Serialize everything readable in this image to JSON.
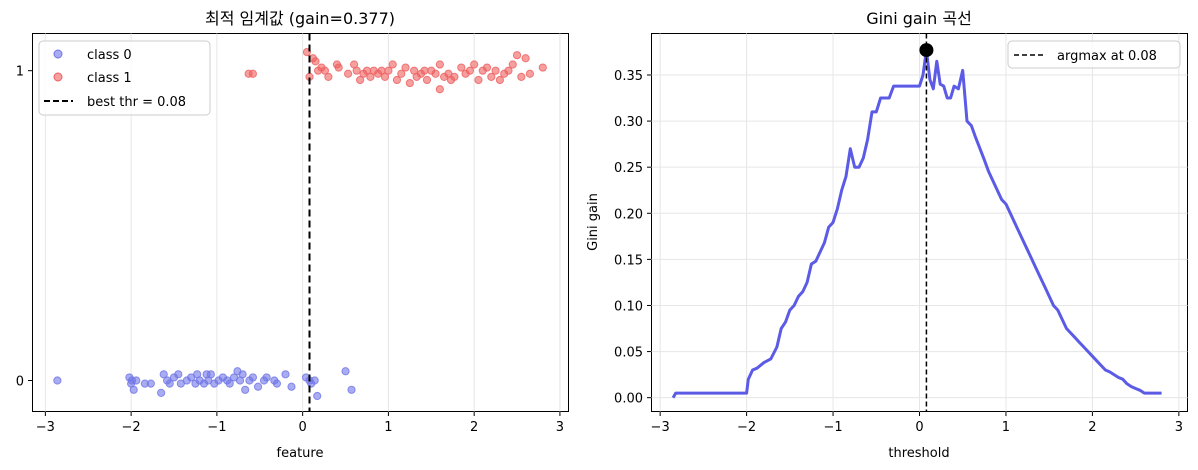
{
  "chart_data": [
    {
      "type": "scatter",
      "title": "최적 임계값 (gain=0.377)",
      "xlabel": "feature",
      "ylabel": "",
      "xlim": [
        -3.15,
        3.1
      ],
      "ylim": [
        -0.1,
        1.12
      ],
      "xticks": [
        "−3",
        "−2",
        "−1",
        "0",
        "1",
        "2",
        "3"
      ],
      "yticks": [
        "0",
        "1"
      ],
      "grid": true,
      "legend_position": "top-left",
      "threshold": 0.08,
      "threshold_label": "best thr = 0.08",
      "series": [
        {
          "name": "class 0",
          "color": "#6f75e6",
          "points": [
            [
              -2.86,
              0.0
            ],
            [
              -2.02,
              0.01
            ],
            [
              -2.0,
              -0.01
            ],
            [
              -1.99,
              0.0
            ],
            [
              -1.97,
              -0.03
            ],
            [
              -1.94,
              0.0
            ],
            [
              -1.84,
              -0.01
            ],
            [
              -1.77,
              -0.01
            ],
            [
              -1.65,
              -0.04
            ],
            [
              -1.62,
              0.02
            ],
            [
              -1.58,
              0.0
            ],
            [
              -1.55,
              -0.01
            ],
            [
              -1.5,
              0.01
            ],
            [
              -1.45,
              0.02
            ],
            [
              -1.42,
              -0.01
            ],
            [
              -1.35,
              0.0
            ],
            [
              -1.3,
              0.01
            ],
            [
              -1.25,
              -0.01
            ],
            [
              -1.23,
              0.02
            ],
            [
              -1.2,
              0.0
            ],
            [
              -1.15,
              -0.01
            ],
            [
              -1.12,
              0.02
            ],
            [
              -1.1,
              0.0
            ],
            [
              -1.07,
              0.02
            ],
            [
              -1.03,
              -0.01
            ],
            [
              -0.98,
              0.0
            ],
            [
              -0.93,
              0.01
            ],
            [
              -0.88,
              0.0
            ],
            [
              -0.85,
              -0.01
            ],
            [
              -0.8,
              0.01
            ],
            [
              -0.76,
              0.03
            ],
            [
              -0.73,
              0.0
            ],
            [
              -0.7,
              0.02
            ],
            [
              -0.67,
              -0.03
            ],
            [
              -0.62,
              0.0
            ],
            [
              -0.58,
              0.01
            ],
            [
              -0.52,
              -0.02
            ],
            [
              -0.45,
              0.0
            ],
            [
              -0.42,
              0.01
            ],
            [
              -0.33,
              0.0
            ],
            [
              -0.3,
              -0.01
            ],
            [
              -0.2,
              0.02
            ],
            [
              -0.13,
              -0.02
            ],
            [
              0.04,
              0.01
            ],
            [
              0.08,
              0.0
            ],
            [
              0.1,
              -0.01
            ],
            [
              0.14,
              0.0
            ],
            [
              0.17,
              -0.05
            ],
            [
              0.5,
              0.03
            ],
            [
              0.57,
              -0.03
            ]
          ]
        },
        {
          "name": "class 1",
          "color": "#ee5f5f",
          "points": [
            [
              -0.63,
              0.99
            ],
            [
              -0.58,
              0.99
            ],
            [
              0.05,
              1.06
            ],
            [
              0.08,
              0.98
            ],
            [
              0.12,
              1.04
            ],
            [
              0.15,
              1.03
            ],
            [
              0.18,
              1.0
            ],
            [
              0.22,
              1.01
            ],
            [
              0.26,
              1.0
            ],
            [
              0.3,
              0.98
            ],
            [
              0.4,
              1.02
            ],
            [
              0.42,
              1.01
            ],
            [
              0.53,
              0.99
            ],
            [
              0.6,
              1.02
            ],
            [
              0.63,
              1.0
            ],
            [
              0.67,
              0.97
            ],
            [
              0.71,
              0.99
            ],
            [
              0.75,
              1.0
            ],
            [
              0.79,
              0.98
            ],
            [
              0.83,
              1.0
            ],
            [
              0.88,
              0.99
            ],
            [
              0.92,
              1.0
            ],
            [
              0.96,
              0.98
            ],
            [
              1.0,
              1.0
            ],
            [
              1.05,
              1.02
            ],
            [
              1.1,
              0.97
            ],
            [
              1.15,
              0.99
            ],
            [
              1.2,
              1.01
            ],
            [
              1.25,
              0.96
            ],
            [
              1.3,
              1.0
            ],
            [
              1.33,
              0.98
            ],
            [
              1.38,
              0.99
            ],
            [
              1.42,
              1.0
            ],
            [
              1.45,
              0.97
            ],
            [
              1.5,
              1.0
            ],
            [
              1.55,
              0.99
            ],
            [
              1.6,
              1.02
            ],
            [
              1.65,
              0.98
            ],
            [
              1.7,
              0.99
            ],
            [
              1.73,
              0.97
            ],
            [
              1.77,
              0.98
            ],
            [
              1.85,
              1.01
            ],
            [
              1.9,
              0.99
            ],
            [
              1.95,
              1.0
            ],
            [
              2.0,
              1.02
            ],
            [
              2.05,
              0.97
            ],
            [
              2.1,
              1.0
            ],
            [
              2.15,
              1.01
            ],
            [
              2.2,
              0.98
            ],
            [
              2.25,
              1.0
            ],
            [
              2.3,
              0.97
            ],
            [
              2.35,
              0.99
            ],
            [
              2.4,
              1.0
            ],
            [
              2.45,
              1.02
            ],
            [
              2.5,
              1.05
            ],
            [
              2.55,
              0.98
            ],
            [
              2.6,
              1.04
            ],
            [
              2.65,
              0.99
            ],
            [
              2.8,
              1.01
            ],
            [
              1.6,
              0.94
            ]
          ]
        }
      ]
    },
    {
      "type": "line",
      "title": "Gini gain 곡선",
      "xlabel": "threshold",
      "ylabel": "Gini gain",
      "xlim": [
        -3.1,
        3.1
      ],
      "ylim": [
        -0.015,
        0.395
      ],
      "xticks": [
        "−3",
        "−2",
        "−1",
        "0",
        "1",
        "2",
        "3"
      ],
      "yticks": [
        "0.00",
        "0.05",
        "0.10",
        "0.15",
        "0.20",
        "0.25",
        "0.30",
        "0.35"
      ],
      "grid": true,
      "legend_position": "top-right",
      "argmax_x": 0.08,
      "argmax_y": 0.377,
      "argmax_label": "argmax at 0.08",
      "series": [
        {
          "name": "",
          "color": "#5b5be6",
          "x": [
            -2.85,
            -2.82,
            -2.0,
            -1.98,
            -1.93,
            -1.88,
            -1.8,
            -1.72,
            -1.65,
            -1.6,
            -1.55,
            -1.5,
            -1.45,
            -1.4,
            -1.35,
            -1.3,
            -1.25,
            -1.2,
            -1.15,
            -1.1,
            -1.05,
            -1.0,
            -0.95,
            -0.9,
            -0.85,
            -0.8,
            -0.75,
            -0.7,
            -0.65,
            -0.6,
            -0.55,
            -0.5,
            -0.45,
            -0.4,
            -0.35,
            -0.3,
            -0.25,
            -0.2,
            -0.15,
            -0.1,
            -0.05,
            0.0,
            0.04,
            0.08,
            0.12,
            0.16,
            0.2,
            0.24,
            0.28,
            0.32,
            0.36,
            0.4,
            0.45,
            0.5,
            0.55,
            0.6,
            0.65,
            0.7,
            0.75,
            0.8,
            0.85,
            0.9,
            0.95,
            1.0,
            1.05,
            1.1,
            1.15,
            1.2,
            1.25,
            1.3,
            1.35,
            1.4,
            1.45,
            1.5,
            1.55,
            1.6,
            1.65,
            1.7,
            1.75,
            1.8,
            1.85,
            1.9,
            1.95,
            2.0,
            2.05,
            2.1,
            2.15,
            2.2,
            2.25,
            2.3,
            2.35,
            2.4,
            2.45,
            2.5,
            2.55,
            2.6,
            2.65,
            2.7,
            2.75,
            2.8
          ],
          "y": [
            0.0,
            0.005,
            0.005,
            0.02,
            0.03,
            0.032,
            0.038,
            0.042,
            0.055,
            0.075,
            0.082,
            0.095,
            0.1,
            0.11,
            0.115,
            0.125,
            0.145,
            0.148,
            0.158,
            0.168,
            0.185,
            0.19,
            0.205,
            0.225,
            0.24,
            0.27,
            0.25,
            0.25,
            0.26,
            0.28,
            0.31,
            0.31,
            0.325,
            0.325,
            0.325,
            0.338,
            0.338,
            0.338,
            0.338,
            0.338,
            0.338,
            0.338,
            0.35,
            0.377,
            0.345,
            0.335,
            0.365,
            0.34,
            0.338,
            0.325,
            0.325,
            0.338,
            0.335,
            0.355,
            0.3,
            0.295,
            0.282,
            0.27,
            0.258,
            0.245,
            0.235,
            0.225,
            0.215,
            0.21,
            0.2,
            0.19,
            0.18,
            0.17,
            0.16,
            0.15,
            0.14,
            0.13,
            0.12,
            0.11,
            0.1,
            0.095,
            0.085,
            0.075,
            0.07,
            0.065,
            0.06,
            0.055,
            0.05,
            0.045,
            0.04,
            0.035,
            0.03,
            0.028,
            0.025,
            0.022,
            0.02,
            0.015,
            0.012,
            0.01,
            0.008,
            0.005,
            0.005,
            0.005,
            0.005,
            0.005
          ]
        }
      ]
    }
  ]
}
